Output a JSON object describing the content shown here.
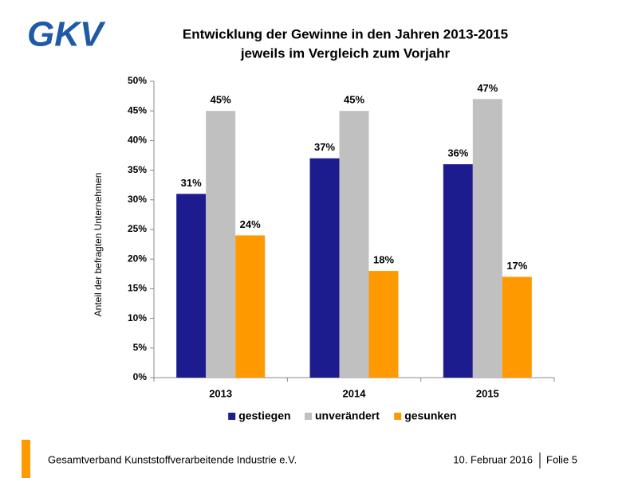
{
  "logo": "GKV",
  "footer": {
    "organization": "Gesamtverband Kunststoffverarbeitende Industrie e.V.",
    "date": "10. Februar 2016",
    "slide": "Folie 5"
  },
  "chart_data": {
    "type": "bar",
    "title": [
      "Entwicklung der Gewinne in den Jahren 2013-2015",
      "jeweils im Vergleich zum Vorjahr"
    ],
    "y_label": "Anteil der befragten Unternehmen",
    "categories": [
      "2013",
      "2014",
      "2015"
    ],
    "series": [
      {
        "name": "gestiegen",
        "color": "#1c1c8e",
        "values": [
          31,
          37,
          36
        ],
        "value_labels": [
          "31%",
          "37%",
          "36%"
        ]
      },
      {
        "name": "unverändert",
        "color": "#c0c0c0",
        "values": [
          45,
          45,
          47
        ],
        "value_labels": [
          "45%",
          "45%",
          "47%"
        ]
      },
      {
        "name": "gesunken",
        "color": "#ff9900",
        "values": [
          24,
          18,
          17
        ],
        "value_labels": [
          "24%",
          "18%",
          "17%"
        ]
      }
    ],
    "ylim": [
      0,
      50
    ],
    "yticks": [
      {
        "value": 0,
        "label": "0%"
      },
      {
        "value": 5,
        "label": "5%"
      },
      {
        "value": 10,
        "label": "10%"
      },
      {
        "value": 15,
        "label": "15%"
      },
      {
        "value": 20,
        "label": "20%"
      },
      {
        "value": 25,
        "label": "25%"
      },
      {
        "value": 30,
        "label": "30%"
      },
      {
        "value": 35,
        "label": "35%"
      },
      {
        "value": 40,
        "label": "40%"
      },
      {
        "value": 45,
        "label": "45%"
      },
      {
        "value": 50,
        "label": "50%"
      }
    ],
    "legend": "bottom"
  }
}
